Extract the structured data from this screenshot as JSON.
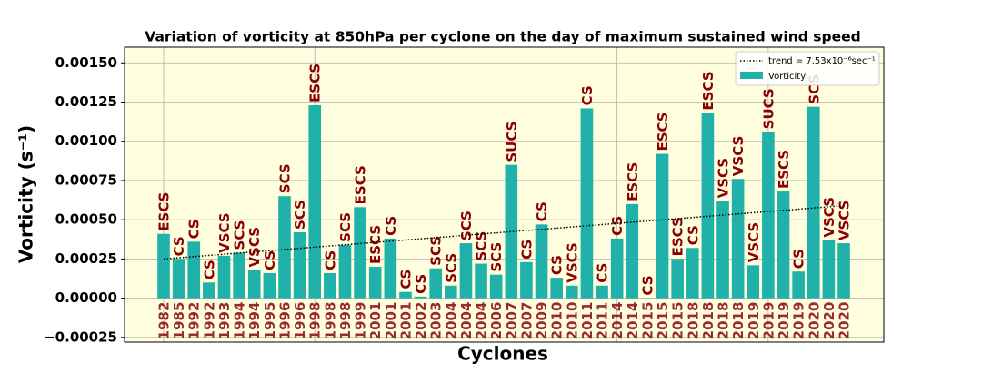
{
  "chart_data": {
    "type": "bar",
    "title": "Variation of vorticity at 850hPa per cyclone on the day of maximum sustained wind speed",
    "xlabel": "Cyclones",
    "ylabel": "Vorticity (s⁻¹)",
    "categories": [
      "1982",
      "1985",
      "1992",
      "1992",
      "1993",
      "1994",
      "1994",
      "1995",
      "1996",
      "1996",
      "1998",
      "1998",
      "1998",
      "1999",
      "2001",
      "2001",
      "2001",
      "2002",
      "2003",
      "2004",
      "2004",
      "2004",
      "2006",
      "2007",
      "2007",
      "2009",
      "2010",
      "2010",
      "2011",
      "2011",
      "2014",
      "2014",
      "2015",
      "2015",
      "2015",
      "2018",
      "2018",
      "2018",
      "2018",
      "2019",
      "2019",
      "2019",
      "2019",
      "2020",
      "2020",
      "2020"
    ],
    "series": [
      {
        "name": "Vorticity",
        "color": "#20b2aa",
        "values": [
          0.00041,
          0.00025,
          0.00036,
          0.0001,
          0.00027,
          0.00029,
          0.00018,
          0.00016,
          0.00065,
          0.00042,
          0.00123,
          0.00016,
          0.00034,
          0.00058,
          0.0002,
          0.00038,
          4e-05,
          1e-05,
          0.00019,
          8e-05,
          0.00035,
          0.00022,
          0.00015,
          0.00085,
          0.00023,
          0.00047,
          0.00013,
          8e-05,
          0.00121,
          8e-05,
          0.00038,
          0.0006,
          0.0,
          0.00092,
          0.00025,
          0.00032,
          0.00118,
          0.00062,
          0.00076,
          0.00021,
          0.00106,
          0.00068,
          0.00017,
          0.00122,
          0.00037,
          0.00035
        ],
        "bar_labels": [
          "ESCS",
          "CS",
          "CS",
          "CS",
          "VSCS",
          "SCS",
          "VSCS",
          "CS",
          "SCS",
          "SCS",
          "ESCS",
          "CS",
          "SCS",
          "ESCS",
          "ESCS",
          "CS",
          "CS",
          "CS",
          "SCS",
          "SCS",
          "SCS",
          "SCS",
          "SCS",
          "SUCS",
          "CS",
          "CS",
          "CS",
          "VSCS",
          "CS",
          "CS",
          "CS",
          "ESCS",
          "CS",
          "ESCS",
          "ESCS",
          "CS",
          "ESCS",
          "VSCS",
          "VSCS",
          "VSCS",
          "SUCS",
          "ESCS",
          "CS",
          "SCS",
          "VSCS",
          "VSCS"
        ]
      }
    ],
    "trend": {
      "name": "trend = 7.53x10⁻⁶sec⁻¹",
      "start": 0.00025,
      "end": 0.00059,
      "color": "#000000"
    },
    "ylim": [
      -0.00028,
      0.0016
    ],
    "yticks": [
      {
        "value": -0.00025,
        "label": "−0.00025"
      },
      {
        "value": 0,
        "label": "0.00000"
      },
      {
        "value": 0.00025,
        "label": "0.00025"
      },
      {
        "value": 0.0005,
        "label": "0.00050"
      },
      {
        "value": 0.00075,
        "label": "0.00075"
      },
      {
        "value": 0.001,
        "label": "0.00100"
      },
      {
        "value": 0.00125,
        "label": "0.00125"
      },
      {
        "value": 0.0015,
        "label": "0.00150"
      }
    ],
    "grid": true,
    "legend": "upper right",
    "background": "#ffffe0",
    "label_color": "#8b0000",
    "category_color": "#9b2a2a"
  }
}
